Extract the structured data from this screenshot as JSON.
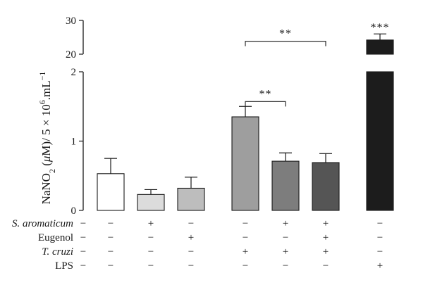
{
  "chart_data": {
    "type": "bar",
    "ylabel_parts": {
      "main": "NaNO",
      "sub": "2",
      "open": " (",
      "mu": "μ",
      "rest": "M)/ 5 × 10",
      "sup6": "6",
      "unit": ".mL",
      "sup_minus1": "−1"
    },
    "broken_axis": {
      "lower_ylim": [
        0,
        2
      ],
      "upper_ylim": [
        20,
        30
      ],
      "lower_ticks": [
        "0",
        "1",
        "2"
      ],
      "upper_ticks": [
        "20",
        "30"
      ]
    },
    "bars": [
      {
        "value": 0.53,
        "error": 0.22,
        "color": "#ffffff"
      },
      {
        "value": 0.23,
        "error": 0.07,
        "color": "#dcdcdc"
      },
      {
        "value": 0.32,
        "error": 0.16,
        "color": "#bdbdbd"
      },
      {
        "value": 1.35,
        "error": 0.15,
        "color": "#9e9e9e"
      },
      {
        "value": 0.71,
        "error": 0.12,
        "color": "#7d7d7d"
      },
      {
        "value": 0.69,
        "error": 0.13,
        "color": "#555555"
      },
      {
        "value": 24.2,
        "error": 1.8,
        "color": "#1c1c1c"
      }
    ],
    "significance": [
      {
        "label": "**",
        "from_bar": 3,
        "to_bar": 5,
        "level": 2.44
      },
      {
        "label": "**",
        "from_bar": 3,
        "to_bar": 4,
        "level": 1.57
      },
      {
        "label": "***",
        "on_bar": 6
      }
    ],
    "treatment_table": [
      {
        "label": "S. aromaticum",
        "italic": true,
        "signs": [
          "−",
          "+",
          "−",
          "−",
          "+",
          "+",
          "−"
        ]
      },
      {
        "label": "Eugenol",
        "italic": false,
        "signs": [
          "−",
          "−",
          "+",
          "−",
          "−",
          "+",
          "−"
        ]
      },
      {
        "label": "T. cruzi",
        "italic": true,
        "signs": [
          "−",
          "−",
          "−",
          "+",
          "+",
          "+",
          "−"
        ]
      },
      {
        "label": "LPS",
        "italic": false,
        "signs": [
          "−",
          "−",
          "−",
          "−",
          "−",
          "−",
          "+"
        ]
      }
    ]
  }
}
